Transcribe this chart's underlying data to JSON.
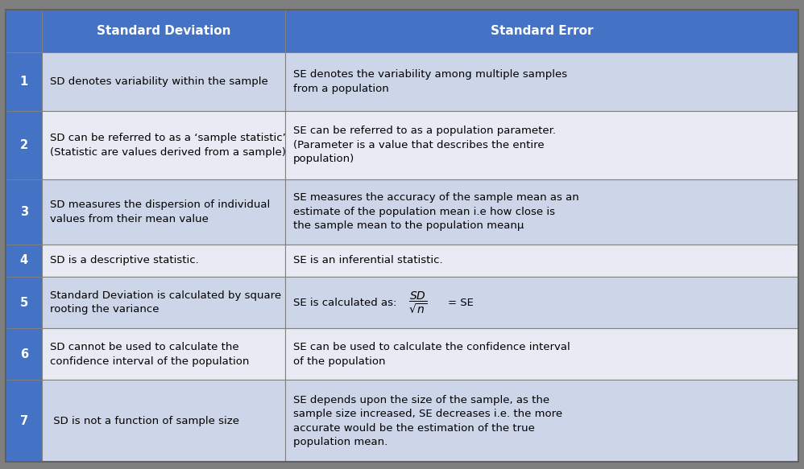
{
  "header_bg": "#4472C4",
  "header_text_color": "#FFFFFF",
  "row_num_bg": "#4472C4",
  "row_num_text_color": "#FFFFFF",
  "odd_row_bg": "#CDD5E8",
  "even_row_bg": "#E8EBF4",
  "border_color": "#808080",
  "outer_border_color": "#606060",
  "text_color": "#000000",
  "outer_bg": "#7F7F7F",
  "col1_header": "Standard Deviation",
  "col2_header": "Standard Error",
  "rows": [
    {
      "num": "1",
      "sd": "SD denotes variability within the sample",
      "se": "SE denotes the variability among multiple samples\nfrom a population"
    },
    {
      "num": "2",
      "sd": "SD can be referred to as a ‘sample statistic’\n(Statistic are values derived from a sample)",
      "se": "SE can be referred to as a population parameter.\n(Parameter is a value that describes the entire\npopulation)"
    },
    {
      "num": "3",
      "sd": "SD measures the dispersion of individual\nvalues from their mean value",
      "se": "SE measures the accuracy of the sample mean as an\nestimate of the population mean i.e how close is\nthe sample mean to the population meanμ"
    },
    {
      "num": "4",
      "sd": "SD is a descriptive statistic.",
      "se": "SE is an inferential statistic."
    },
    {
      "num": "5",
      "sd": "Standard Deviation is calculated by square\nrooting the variance",
      "se_has_formula": true,
      "se": "SE is calculated as:"
    },
    {
      "num": "6",
      "sd": "SD cannot be used to calculate the\nconfidence interval of the population",
      "se": "SE can be used to calculate the confidence interval\nof the population"
    },
    {
      "num": "7",
      "sd": " SD is not a function of sample size",
      "se": "SE depends upon the size of the sample, as the\nsample size increased, SE decreases i.e. the more\naccurate would be the estimation of the true\npopulation mean."
    }
  ],
  "figsize": [
    9.98,
    5.83
  ],
  "dpi": 100
}
